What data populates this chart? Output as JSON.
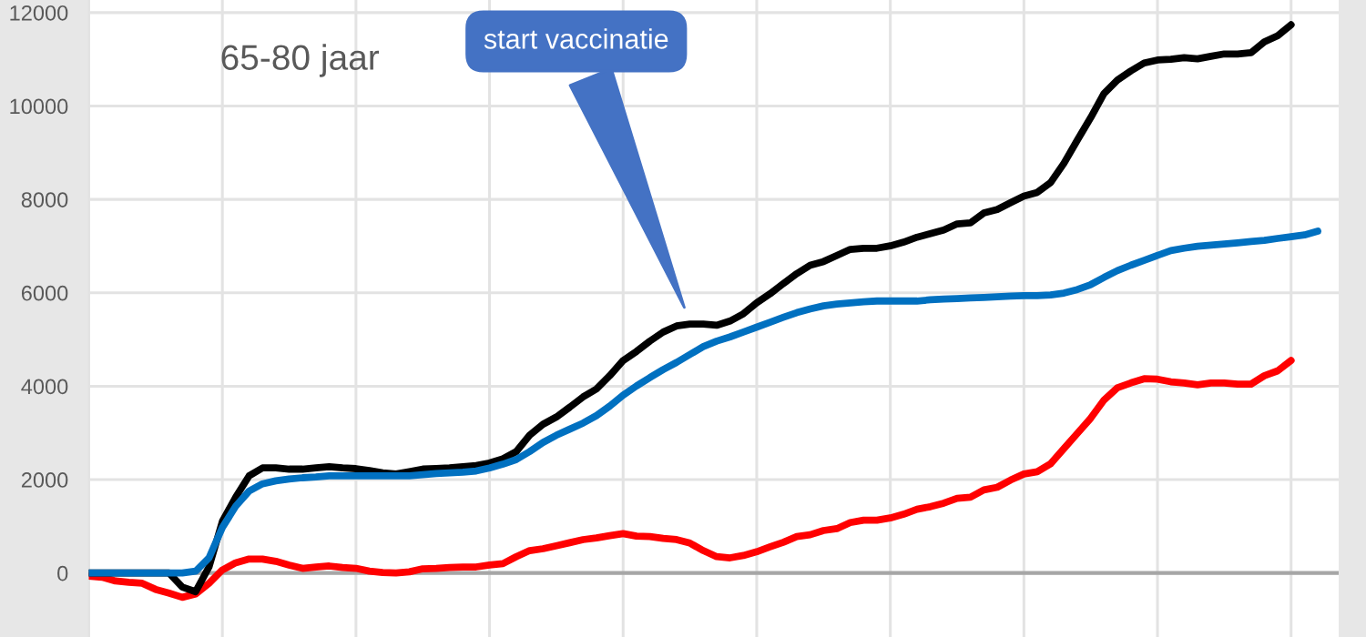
{
  "chart_data": {
    "type": "line",
    "title": "65-80 jaar",
    "categories": [
      null,
      null,
      null,
      null,
      null,
      null,
      null,
      null,
      null,
      null,
      null,
      null,
      null,
      null,
      null,
      null,
      null,
      null,
      null,
      null,
      null,
      null,
      null,
      null,
      null,
      null,
      null,
      null,
      null,
      null,
      null,
      null,
      null,
      null,
      null,
      null,
      null,
      null,
      null,
      null,
      null,
      null,
      null,
      null,
      null,
      null,
      null,
      null,
      null,
      null,
      null,
      null,
      null,
      null,
      null,
      null,
      null,
      null,
      null,
      null,
      null,
      null,
      null,
      null,
      null,
      null,
      null,
      null,
      null,
      null,
      null,
      null,
      null,
      null,
      null,
      null,
      null,
      null,
      null,
      null,
      null,
      null,
      null,
      null,
      null,
      null,
      null,
      null,
      null,
      null,
      null,
      null,
      null
    ],
    "series": [
      {
        "color": "#ff0000",
        "values": [
          -65,
          -90,
          -170,
          -200,
          -220,
          -350,
          -430,
          -520,
          -450,
          -220,
          65,
          220,
          300,
          300,
          250,
          170,
          100,
          130,
          150,
          120,
          100,
          40,
          13,
          0,
          25,
          90,
          100,
          120,
          130,
          130,
          170,
          200,
          350,
          480,
          520,
          585,
          650,
          715,
          750,
          800,
          845,
          790,
          780,
          740,
          715,
          640,
          480,
          350,
          325,
          375,
          455,
          560,
          660,
          780,
          820,
          910,
          950,
          1080,
          1130,
          1130,
          1180,
          1260,
          1365,
          1420,
          1495,
          1600,
          1625,
          1780,
          1835,
          1990,
          2120,
          2170,
          2340,
          2665,
          2990,
          3315,
          3705,
          3965,
          4070,
          4160,
          4150,
          4095,
          4070,
          4030,
          4070,
          4070,
          4045,
          4045,
          4225,
          4330,
          4550,
          null,
          null
        ]
      },
      {
        "color": "#000000",
        "values": [
          0,
          0,
          0,
          0,
          0,
          0,
          0,
          -300,
          -400,
          130,
          1105,
          1625,
          2080,
          2250,
          2250,
          2225,
          2225,
          2250,
          2275,
          2250,
          2235,
          2195,
          2145,
          2120,
          2170,
          2225,
          2235,
          2250,
          2275,
          2300,
          2355,
          2445,
          2600,
          2950,
          3185,
          3340,
          3550,
          3770,
          3940,
          4225,
          4550,
          4745,
          4965,
          5160,
          5290,
          5330,
          5330,
          5305,
          5395,
          5550,
          5785,
          5980,
          6200,
          6410,
          6590,
          6670,
          6800,
          6930,
          6955,
          6955,
          7005,
          7085,
          7190,
          7265,
          7345,
          7475,
          7500,
          7710,
          7785,
          7930,
          8070,
          8150,
          8360,
          8775,
          9270,
          9750,
          10270,
          10555,
          10750,
          10920,
          10985,
          11000,
          11035,
          11010,
          11065,
          11115,
          11115,
          11140,
          11375,
          11505,
          11740,
          null,
          null
        ]
      },
      {
        "color": "#0070c0",
        "values": [
          0,
          0,
          0,
          0,
          0,
          0,
          0,
          0,
          40,
          325,
          975,
          1430,
          1755,
          1910,
          1975,
          2015,
          2040,
          2055,
          2080,
          2080,
          2080,
          2080,
          2080,
          2080,
          2080,
          2105,
          2130,
          2145,
          2160,
          2185,
          2250,
          2330,
          2430,
          2600,
          2795,
          2950,
          3080,
          3210,
          3370,
          3575,
          3810,
          4005,
          4185,
          4355,
          4510,
          4680,
          4850,
          4965,
          5055,
          5160,
          5265,
          5370,
          5475,
          5575,
          5655,
          5720,
          5760,
          5785,
          5810,
          5825,
          5825,
          5825,
          5825,
          5850,
          5865,
          5875,
          5890,
          5900,
          5915,
          5930,
          5940,
          5940,
          5955,
          5995,
          6070,
          6175,
          6330,
          6475,
          6590,
          6695,
          6800,
          6905,
          6955,
          6995,
          7020,
          7045,
          7070,
          7100,
          7125,
          7165,
          7200,
          7240,
          7320
        ]
      }
    ],
    "ylim": [
      -1370,
      12270
    ],
    "yticks": [
      0,
      2000,
      4000,
      6000,
      8000,
      10000,
      12000
    ],
    "tick_labels": "y",
    "grid": true,
    "marker": "none",
    "line_style": "solid",
    "ref_lines": [
      {
        "axis": "y",
        "value": 0,
        "color": "#a6a6a6"
      }
    ],
    "annotations": [
      "start vaccinatie"
    ]
  }
}
